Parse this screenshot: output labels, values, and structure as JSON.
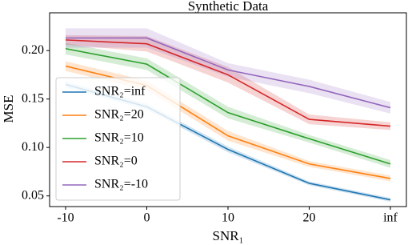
{
  "chart_data": {
    "type": "line",
    "title": "Synthetic Data",
    "x_label": "SNR₁",
    "y_label": "MSE",
    "categories": [
      "-10",
      "0",
      "10",
      "20",
      "inf"
    ],
    "ylim": [
      0.039,
      0.239
    ],
    "yticks": [
      0.05,
      {
        "value": 0.1,
        "label": "0.10"
      },
      0.15,
      {
        "value": 0.2,
        "label": "0.20"
      }
    ],
    "legend": "lower left",
    "series": [
      {
        "name": "SNR₂=inf",
        "color": "#1f77b4",
        "values": [
          0.165,
          0.142,
          0.098,
          0.063,
          0.046
        ],
        "errors": [
          0.003,
          0.003,
          0.003,
          0.002,
          0.002
        ]
      },
      {
        "name": "SNR₂=20",
        "color": "#ff7f0e",
        "values": [
          0.184,
          0.164,
          0.112,
          0.083,
          0.068
        ],
        "errors": [
          0.005,
          0.005,
          0.005,
          0.003,
          0.003
        ]
      },
      {
        "name": "SNR₂=10",
        "color": "#2ca02c",
        "values": [
          0.202,
          0.186,
          0.136,
          0.109,
          0.083
        ],
        "errors": [
          0.006,
          0.006,
          0.006,
          0.004,
          0.004
        ]
      },
      {
        "name": "SNR₂=0",
        "color": "#d62728",
        "values": [
          0.211,
          0.207,
          0.175,
          0.129,
          0.122
        ],
        "errors": [
          0.005,
          0.008,
          0.008,
          0.005,
          0.004
        ]
      },
      {
        "name": "SNR₂=-10",
        "color": "#9467bd",
        "values": [
          0.213,
          0.213,
          0.18,
          0.163,
          0.141
        ],
        "errors": [
          0.01,
          0.01,
          0.007,
          0.007,
          0.006
        ]
      }
    ]
  }
}
